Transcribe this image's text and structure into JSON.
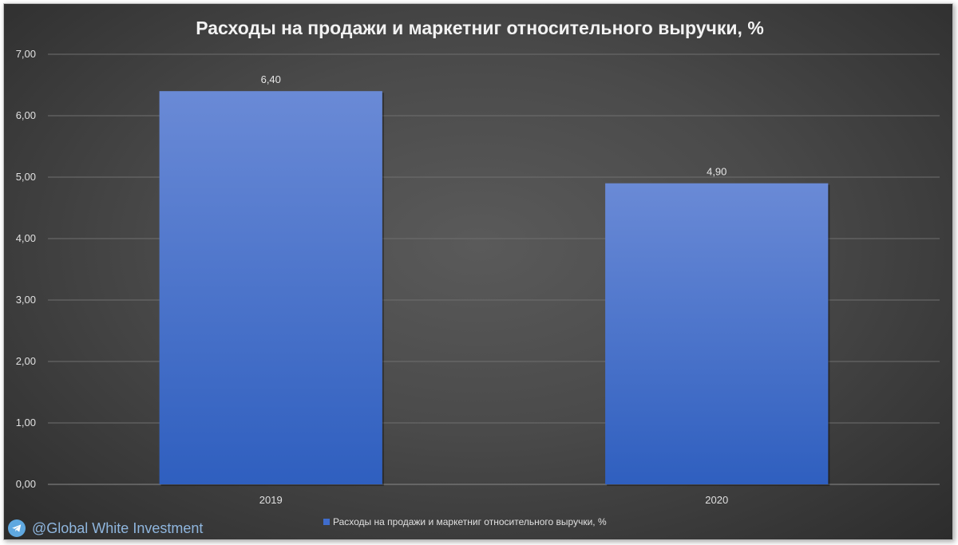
{
  "chart_data": {
    "type": "bar",
    "title": "Расходы на продажи и маркетниг относительного выручки, %",
    "categories": [
      "2019",
      "2020"
    ],
    "series": [
      {
        "name": "Расходы на продажи и маркетниг относительного выручки, %",
        "values": [
          6.4,
          4.9
        ]
      }
    ],
    "data_labels": [
      "6,40",
      "4,90"
    ],
    "y_ticks": [
      "0,00",
      "1,00",
      "2,00",
      "3,00",
      "4,00",
      "5,00",
      "6,00",
      "7,00"
    ],
    "ylim": [
      0,
      7
    ],
    "xlabel": "",
    "ylabel": "",
    "grid": true,
    "legend_position": "bottom",
    "colors": {
      "bar_top": "#6a8ad6",
      "bar_bottom": "#2f5fbf",
      "grid": "#6f6f6f",
      "background": "#4a4a4a"
    }
  },
  "watermark": {
    "text": "@Global White Investment",
    "icon": "telegram-icon"
  }
}
